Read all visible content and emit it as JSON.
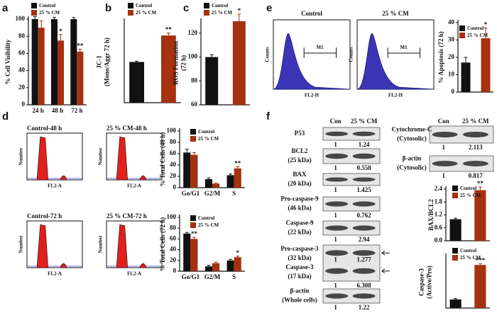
{
  "panel_labels": [
    "a",
    "b",
    "c",
    "d",
    "e",
    "f"
  ],
  "chart_data": [
    {
      "type": "bar",
      "ylabel": [
        "% Cell Visibility"
      ],
      "categories": [
        "24 h",
        "48 h",
        "72 h"
      ],
      "series": [
        {
          "name": "Control",
          "color": "#111111",
          "values": [
            100,
            100,
            100
          ],
          "errors": [
            3,
            2,
            2
          ],
          "significance": [
            null,
            null,
            null
          ]
        },
        {
          "name": "25 % CM",
          "color": "#a5310f",
          "values": [
            90,
            75,
            62
          ],
          "errors": [
            8,
            7,
            3
          ],
          "significance": [
            null,
            "*",
            "**"
          ]
        }
      ],
      "ylim": [
        0,
        100
      ],
      "yticks": [
        0,
        20,
        40,
        60,
        80,
        100
      ],
      "legend": "upper left"
    },
    {
      "type": "bar",
      "ylabel": [
        "JC-1",
        "(Mono/Aggr 72 h)"
      ],
      "categories": [
        null
      ],
      "series": [
        {
          "name": "Control",
          "color": "#111111",
          "values": [
            100
          ],
          "errors": [
            2
          ],
          "significance": [
            null
          ]
        },
        {
          "name": "25 % CM",
          "color": "#a5310f",
          "values": [
            165
          ],
          "errors": [
            6
          ],
          "significance": [
            "**"
          ]
        }
      ],
      "ylim": [
        0,
        200
      ],
      "yticks": [],
      "legend": "upper left"
    },
    {
      "type": "bar",
      "ylabel": [
        "ROS Formation",
        "(72 h)"
      ],
      "categories": [
        null
      ],
      "series": [
        {
          "name": "Control",
          "color": "#111111",
          "values": [
            100
          ],
          "errors": [
            2
          ],
          "significance": [
            null
          ]
        },
        {
          "name": "25 % CM",
          "color": "#a5310f",
          "values": [
            130
          ],
          "errors": [
            6
          ],
          "significance": [
            "*"
          ]
        }
      ],
      "ylim": [
        60,
        130
      ],
      "yticks": [
        60,
        80,
        100,
        120
      ],
      "legend": "upper left"
    },
    {
      "type": "bar",
      "ylabel": [
        "% Apoptosis (72 h)"
      ],
      "categories": [
        null
      ],
      "series": [
        {
          "name": "Control",
          "color": "#111111",
          "values": [
            17
          ],
          "errors": [
            3
          ],
          "significance": [
            null
          ]
        },
        {
          "name": "25 % CM",
          "color": "#a5310f",
          "values": [
            31
          ],
          "errors": [
            6
          ],
          "significance": [
            "*"
          ]
        }
      ],
      "ylim": [
        0,
        40
      ],
      "yticks": [
        0,
        10,
        20,
        30,
        40
      ],
      "legend": "upper left"
    },
    {
      "type": "bar",
      "ylabel": [
        "% Total Cells (48 h)"
      ],
      "categories": [
        "Go/G1",
        "G2/M",
        "S"
      ],
      "series": [
        {
          "name": "Control",
          "color": "#111111",
          "values": [
            62,
            15,
            22
          ],
          "errors": [
            6,
            2,
            2
          ],
          "significance": [
            null,
            null,
            null
          ]
        },
        {
          "name": "25 % CM",
          "color": "#a5310f",
          "values": [
            58,
            7,
            34
          ],
          "errors": [
            4,
            1,
            3
          ],
          "significance": [
            null,
            null,
            "**"
          ]
        }
      ],
      "ylim": [
        0,
        100
      ],
      "yticks": [
        0,
        20,
        40,
        60,
        80,
        100
      ],
      "legend": "upper left"
    },
    {
      "type": "bar",
      "ylabel": [
        "% Total Cells (72 h)"
      ],
      "categories": [
        "Go/G1",
        "G2/M",
        "S"
      ],
      "series": [
        {
          "name": "Control",
          "color": "#111111",
          "values": [
            70,
            9,
            20
          ],
          "errors": [
            2,
            2,
            2
          ],
          "significance": [
            null,
            null,
            null
          ]
        },
        {
          "name": "25 % CM",
          "color": "#a5310f",
          "values": [
            60,
            15,
            26
          ],
          "errors": [
            3,
            2,
            2
          ],
          "significance": [
            "**",
            null,
            "*"
          ]
        }
      ],
      "ylim": [
        0,
        100
      ],
      "yticks": [
        0,
        20,
        40,
        60,
        80,
        100
      ],
      "legend": "upper left"
    },
    {
      "type": "bar",
      "ylabel": [
        "BAX/BCL2"
      ],
      "categories": [
        null
      ],
      "series": [
        {
          "name": "Control",
          "color": "#111111",
          "values": [
            1
          ],
          "errors": [
            0.05
          ],
          "significance": [
            null
          ]
        },
        {
          "name": "25 % CM",
          "color": "#a5310f",
          "values": [
            2.35
          ],
          "errors": [
            0.15
          ],
          "significance": [
            "**"
          ]
        }
      ],
      "ylim": [
        0,
        2.4
      ],
      "yticks": [
        {
          "value": 0,
          "label": "0.0"
        },
        0.6,
        1.2,
        1.8,
        2.4
      ],
      "legend": "upper left"
    },
    {
      "type": "bar",
      "ylabel": [
        "Caspase-3",
        "(Active/Pro)"
      ],
      "categories": [
        null
      ],
      "series": [
        {
          "name": "Control",
          "color": "#111111",
          "values": [
            1
          ],
          "errors": [
            0.1
          ],
          "significance": [
            null
          ]
        },
        {
          "name": "25 % CM",
          "color": "#a5310f",
          "values": [
            5
          ],
          "errors": [
            0.15
          ],
          "significance": [
            "***"
          ]
        }
      ],
      "ylim": [
        0,
        6
      ],
      "yticks": [],
      "legend": "upper left"
    }
  ],
  "flow_cytometry": {
    "e": {
      "ylabel": "Counts",
      "xlabel": "FL2-H",
      "gate": "M1",
      "panels": [
        "Control",
        "25 % CM"
      ]
    },
    "d": {
      "ylabel": "Number",
      "xlabel": "FL2-A",
      "panels": [
        "Control-48 h",
        "25 % CM-48 h",
        "Control-72 h",
        "25 % CM-72 h"
      ]
    }
  },
  "western_blot": {
    "whole": {
      "lanes": [
        "Con",
        "25 % CM"
      ],
      "rows": [
        {
          "labels": [
            "P53"
          ],
          "quant": [
            1,
            1.24
          ]
        },
        {
          "labels": [
            "BCL2",
            "(25 kDa)"
          ],
          "quant": [
            1,
            0.558
          ]
        },
        {
          "labels": [
            "BAX",
            "(20 kDa)"
          ],
          "quant": [
            1,
            1.425
          ]
        },
        {
          "labels": [
            "Pro-caspase-9",
            "(46 kDa)"
          ],
          "quant": [
            1,
            0.762
          ]
        },
        {
          "labels": [
            "Caspase-9",
            "(22 kDa)"
          ],
          "quant": [
            1,
            2.94
          ]
        },
        {
          "labels": [
            "Pro-caspase-3",
            "(32 kDa)",
            "Caspase-3",
            "(17 kDa)"
          ],
          "inner_quant": [
            1,
            1.277
          ],
          "quant": [
            1,
            6.308
          ]
        },
        {
          "labels": [
            "β-actin",
            "(Whole cells)"
          ],
          "quant": [
            1,
            1.22
          ]
        }
      ]
    },
    "cytosolic": {
      "lanes": [
        "Con",
        "25 % CM"
      ],
      "rows": [
        {
          "labels": [
            "Cytochrome-C",
            "(Cytosolic)"
          ],
          "quant": [
            1,
            2.113
          ]
        },
        {
          "labels": [
            "β-actin",
            "(Cytosolic)"
          ],
          "quant": [
            1,
            0.817
          ]
        }
      ]
    }
  }
}
